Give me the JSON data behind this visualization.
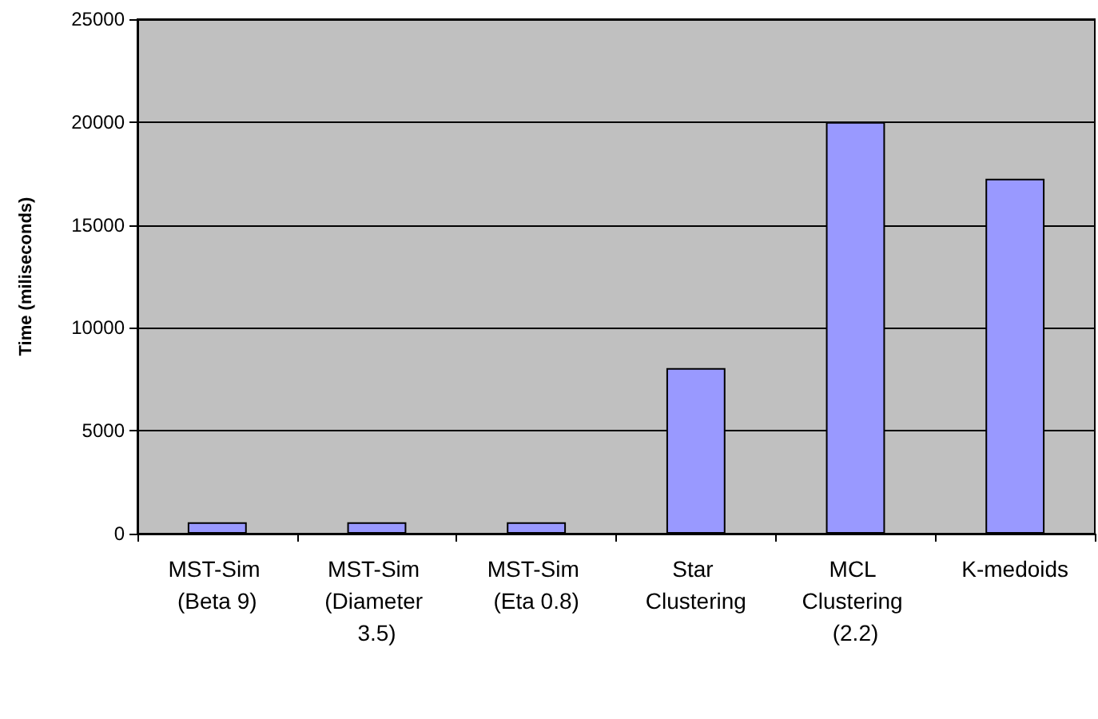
{
  "chart_data": {
    "type": "bar",
    "ylabel": "Time (miliseconds)",
    "categories": [
      "MST-Sim (Beta 9)",
      "MST-Sim (Diameter 3.5)",
      "MST-Sim (Eta 0.8)",
      "Star Clustering",
      "MCL Clustering (2.2)",
      "K-medoids"
    ],
    "values": [
      550,
      550,
      550,
      8050,
      20000,
      17250
    ],
    "color": "#9999ff",
    "ylim": [
      0,
      25000
    ],
    "yticks": [
      0,
      5000,
      10000,
      15000,
      20000,
      25000
    ],
    "grid": "y"
  }
}
